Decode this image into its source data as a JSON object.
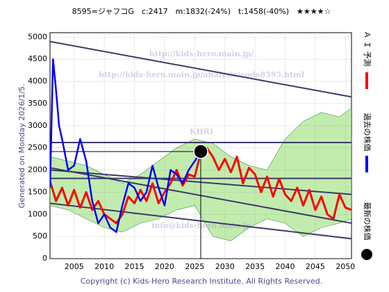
{
  "chart_data": {
    "type": "line",
    "title": "8595=ジャフコG　c:2417　m:1832(-24%)　t:1458(-40%)　★★★★☆",
    "side_note": "Generated on Monday 2026/1/5.",
    "footer": "Copyright (c) Kids-Hero Research Institute. All Rights Reserved.",
    "watermarks": [
      "http://kids-hero.main.jp/",
      "http://kids-hero.main.jp/analysis/code8595.html",
      "KHRI",
      "info@kids-hero.main.jp"
    ],
    "xlim": [
      2001,
      2051
    ],
    "xticks": [
      2005,
      2010,
      2015,
      2020,
      2025,
      2030,
      2035,
      2040,
      2045,
      2050
    ],
    "ylim": [
      0,
      5100
    ],
    "yticks": [
      0,
      500,
      1000,
      1500,
      2000,
      2500,
      3000,
      3500,
      4000,
      4500,
      5000
    ],
    "grid": true,
    "band": {
      "color": "#8fdc6a",
      "x": [
        2001,
        2004,
        2007,
        2010,
        2013,
        2016,
        2019,
        2022,
        2025,
        2028,
        2031,
        2034,
        2037,
        2040,
        2043,
        2046,
        2049,
        2051
      ],
      "upper": [
        2300,
        2200,
        2100,
        1900,
        1700,
        1900,
        2200,
        2500,
        2700,
        2600,
        2300,
        2100,
        2000,
        2700,
        3100,
        3300,
        3200,
        3400
      ],
      "lower": [
        1200,
        1100,
        900,
        700,
        600,
        800,
        900,
        1100,
        1200,
        500,
        400,
        700,
        900,
        800,
        500,
        700,
        800,
        900
      ]
    },
    "trend_lines": [
      {
        "color": "#3a3a6a",
        "x": [
          2001,
          2051
        ],
        "values": [
          4900,
          3650
        ]
      },
      {
        "color": "#3a3a6a",
        "x": [
          2001,
          2051
        ],
        "values": [
          2050,
          800
        ]
      },
      {
        "color": "#3a3a6a",
        "x": [
          2001,
          2051
        ],
        "values": [
          2000,
          1450
        ]
      },
      {
        "color": "#3a3a6a",
        "x": [
          2001,
          2051
        ],
        "values": [
          1250,
          450
        ]
      },
      {
        "color": "#3a3a6a",
        "x": [
          2001,
          2051
        ],
        "values": [
          2620,
          2620
        ]
      },
      {
        "color": "#3a3a6a",
        "x": [
          2001,
          2051
        ],
        "values": [
          1810,
          1810
        ]
      }
    ],
    "series": [
      {
        "name": "Ａ Ｉ 予測",
        "color": "#ff0000",
        "x": [
          2001,
          2002,
          2003,
          2004,
          2005,
          2006,
          2007,
          2008,
          2009,
          2010,
          2011,
          2012,
          2013,
          2014,
          2015,
          2016,
          2017,
          2018,
          2019,
          2020,
          2021,
          2022,
          2023,
          2024,
          2025,
          2026,
          2027,
          2028,
          2029,
          2030,
          2031,
          2032,
          2033,
          2034,
          2035,
          2036,
          2037,
          2038,
          2039,
          2040,
          2041,
          2042,
          2043,
          2044,
          2045,
          2046,
          2047,
          2048,
          2049,
          2050,
          2051
        ],
        "values": [
          1750,
          1300,
          1600,
          1200,
          1550,
          1150,
          1500,
          1100,
          1300,
          1000,
          900,
          800,
          1000,
          1400,
          1250,
          1550,
          1300,
          1700,
          1250,
          1500,
          1700,
          2000,
          1650,
          1900,
          1850,
          2400,
          2500,
          2300,
          2000,
          2250,
          1950,
          2300,
          1700,
          2050,
          1900,
          1500,
          1850,
          1400,
          1800,
          1450,
          1300,
          1600,
          1200,
          1550,
          1100,
          1400,
          1000,
          900,
          1450,
          1150,
          1100
        ]
      },
      {
        "name": "過去の株価",
        "color": "#0000ff",
        "x": [
          2001,
          2001.5,
          2002,
          2002.5,
          2003,
          2004,
          2005,
          2006,
          2007,
          2008,
          2009,
          2010,
          2011,
          2012,
          2013,
          2014,
          2015,
          2016,
          2017,
          2018,
          2019,
          2020,
          2021,
          2022,
          2023,
          2024,
          2025,
          2026
        ],
        "values": [
          1600,
          4500,
          3800,
          3000,
          2700,
          2000,
          2100,
          2700,
          2200,
          1300,
          800,
          1000,
          700,
          600,
          1200,
          1700,
          1600,
          1300,
          1500,
          2100,
          1600,
          1200,
          2000,
          1900,
          1700,
          2000,
          2200,
          2417
        ]
      }
    ],
    "latest": {
      "name": "最新の株価",
      "color": "#000000",
      "x": 2026,
      "value": 2417
    }
  }
}
